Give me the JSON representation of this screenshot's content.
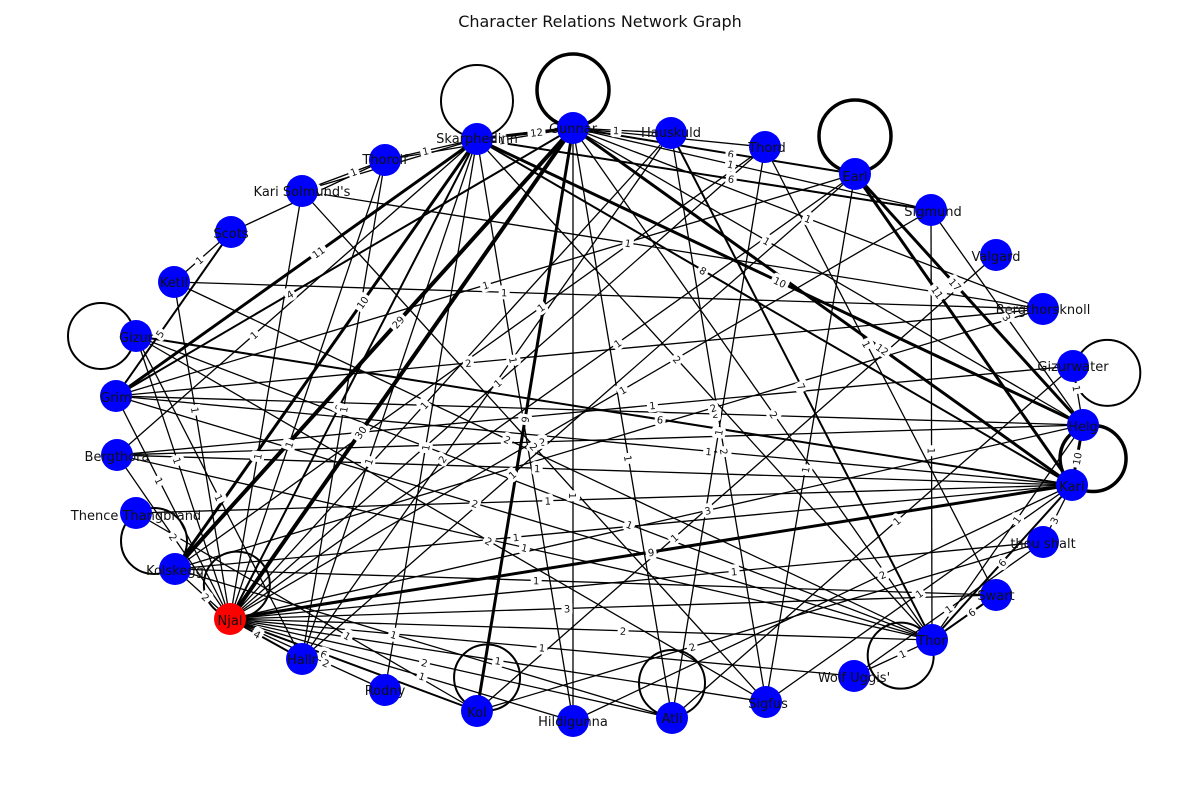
{
  "title": "Character Relations Network Graph",
  "colors": {
    "node": "#0000ff",
    "highlight": "#ff0000",
    "edge": "#000000",
    "background": "#ffffff"
  },
  "nodes": [
    {
      "id": "Gunnar"
    },
    {
      "id": "Hauskuld"
    },
    {
      "id": "Thord"
    },
    {
      "id": "Earl"
    },
    {
      "id": "Sigmund"
    },
    {
      "id": "Valgard"
    },
    {
      "id": "Bergthorsknoll"
    },
    {
      "id": "Gizurwater"
    },
    {
      "id": "Helg"
    },
    {
      "id": "Kari"
    },
    {
      "id": "thou shalt"
    },
    {
      "id": "Swart"
    },
    {
      "id": "Thor"
    },
    {
      "id": "Wolf Uggis'"
    },
    {
      "id": "Sigfus"
    },
    {
      "id": "Atli"
    },
    {
      "id": "Hildigunna"
    },
    {
      "id": "Kol"
    },
    {
      "id": "Rodny"
    },
    {
      "id": "Hallr"
    },
    {
      "id": "Njal",
      "highlight": true
    },
    {
      "id": "Kolskegg"
    },
    {
      "id": "Thence Thangbrand"
    },
    {
      "id": "Bergthora"
    },
    {
      "id": "Grim"
    },
    {
      "id": "Gizur"
    },
    {
      "id": "Ketil"
    },
    {
      "id": "Scots"
    },
    {
      "id": "Kari Solmund's"
    },
    {
      "id": "Thorolf"
    },
    {
      "id": "Skarphedinn"
    }
  ],
  "self_loops": [
    "Skarphedinn",
    "Gunnar",
    "Earl",
    "Gizur",
    "Gizurwater",
    "Helg",
    "Kolskegg",
    "Njal",
    "Kol",
    "Atli",
    "Thor"
  ],
  "edges": [
    [
      "Njal",
      "Gunnar",
      30
    ],
    [
      "Njal",
      "Skarphedinn",
      8
    ],
    [
      "Njal",
      "Kari",
      9
    ],
    [
      "Njal",
      "Helg",
      3
    ],
    [
      "Njal",
      "Grim",
      1
    ],
    [
      "Njal",
      "Kol",
      6
    ],
    [
      "Njal",
      "Atli",
      2
    ],
    [
      "Njal",
      "Sigfus",
      1
    ],
    [
      "Njal",
      "Hildigunna",
      1
    ],
    [
      "Njal",
      "Rodny",
      2
    ],
    [
      "Njal",
      "Hallr",
      4
    ],
    [
      "Njal",
      "Kolskegg",
      2
    ],
    [
      "Njal",
      "Bergthora",
      2
    ],
    [
      "Njal",
      "Thor",
      2
    ],
    [
      "Njal",
      "Earl",
      1
    ],
    [
      "Njal",
      "Thorolf",
      1
    ],
    [
      "Njal",
      "Swart",
      3
    ],
    [
      "Njal",
      "Wolf Uggis'",
      1
    ],
    [
      "Njal",
      "Gizur",
      1
    ],
    [
      "Njal",
      "Ketil",
      1
    ],
    [
      "Njal",
      "Kari Solmund's",
      1
    ],
    [
      "Njal",
      "Hauskuld",
      1
    ],
    [
      "Njal",
      "Thord",
      1
    ],
    [
      "Njal",
      "Sigmund",
      1
    ],
    [
      "Njal",
      "thou shalt",
      1
    ],
    [
      "Gunnar",
      "Skarphedinn",
      12
    ],
    [
      "Gunnar",
      "Hauskuld",
      1
    ],
    [
      "Gunnar",
      "Thord",
      3
    ],
    [
      "Gunnar",
      "Earl",
      6
    ],
    [
      "Gunnar",
      "Kari",
      12
    ],
    [
      "Gunnar",
      "Helg",
      1
    ],
    [
      "Gunnar",
      "Kolskegg",
      29
    ],
    [
      "Gunnar",
      "Kol",
      9
    ],
    [
      "Gunnar",
      "Thor",
      2
    ],
    [
      "Gunnar",
      "Grim",
      4
    ],
    [
      "Gunnar",
      "Thorolf",
      1
    ],
    [
      "Gunnar",
      "Sigmund",
      1
    ],
    [
      "Gunnar",
      "Bergthorsknoll",
      1
    ],
    [
      "Gunnar",
      "Atli",
      1
    ],
    [
      "Gunnar",
      "Hildigunna",
      1
    ],
    [
      "Skarphedinn",
      "Kari",
      8
    ],
    [
      "Skarphedinn",
      "Grim",
      11
    ],
    [
      "Skarphedinn",
      "Helg",
      10
    ],
    [
      "Skarphedinn",
      "Thorolf",
      1
    ],
    [
      "Skarphedinn",
      "Hallr",
      1
    ],
    [
      "Skarphedinn",
      "Kolskegg",
      10
    ],
    [
      "Skarphedinn",
      "Thor",
      2
    ],
    [
      "Skarphedinn",
      "Kari Solmund's",
      1
    ],
    [
      "Skarphedinn",
      "Sigmund",
      6
    ],
    [
      "Skarphedinn",
      "Bergthora",
      1
    ],
    [
      "Earl",
      "Kari",
      11
    ],
    [
      "Earl",
      "Helg",
      17
    ],
    [
      "Earl",
      "Grim",
      1
    ],
    [
      "Earl",
      "Sigfus",
      1
    ],
    [
      "Earl",
      "Hallr",
      1
    ],
    [
      "Kari",
      "Grim",
      1
    ],
    [
      "Kari",
      "Helg",
      10
    ],
    [
      "Kari",
      "Thor",
      6
    ],
    [
      "Kari",
      "Bergthora",
      1
    ],
    [
      "Kari",
      "thou shalt",
      3
    ],
    [
      "Kari",
      "Hildigunna",
      2
    ],
    [
      "Kari",
      "Gizur",
      6
    ],
    [
      "Kari",
      "Sigfus",
      1
    ],
    [
      "Kari",
      "Thence Thangbrand",
      1
    ],
    [
      "Kari",
      "Kolskegg",
      1
    ],
    [
      "Helg",
      "Grim",
      2
    ],
    [
      "Helg",
      "Thor",
      1
    ],
    [
      "Helg",
      "Sigmund",
      3
    ],
    [
      "Helg",
      "Bergthora",
      2
    ],
    [
      "Helg",
      "Gizurwater",
      1
    ],
    [
      "Thorolf",
      "Kari Solmund's",
      1
    ],
    [
      "Thorolf",
      "Scots",
      1
    ],
    [
      "Thorolf",
      "Hallr",
      1
    ],
    [
      "Scots",
      "Ketil",
      1
    ],
    [
      "Scots",
      "Grim",
      5
    ],
    [
      "Grim",
      "Bergthorsknoll",
      2
    ],
    [
      "Grim",
      "Thor",
      2
    ],
    [
      "Hauskuld",
      "Thor",
      7
    ],
    [
      "Hauskuld",
      "Sigfus",
      2
    ],
    [
      "Hauskuld",
      "Hallr",
      2
    ],
    [
      "Thord",
      "Kolskegg",
      1
    ],
    [
      "Thord",
      "Swart",
      1
    ],
    [
      "Thord",
      "Atli",
      1
    ],
    [
      "Sigmund",
      "Thor",
      1
    ],
    [
      "Valgard",
      "Kol",
      1
    ],
    [
      "Bergthorsknoll",
      "Kolskegg",
      2
    ],
    [
      "Gizurwater",
      "Atli",
      1
    ],
    [
      "Thor",
      "Bergthora",
      1
    ],
    [
      "Thor",
      "Ketil",
      2
    ],
    [
      "Thor",
      "Swart",
      6
    ],
    [
      "Thor",
      "Wolf Uggis'",
      1
    ],
    [
      "Sigfus",
      "Gizur",
      2
    ],
    [
      "Sigfus",
      "Kari Solmund's",
      2
    ],
    [
      "Atli",
      "Kolskegg",
      1
    ],
    [
      "Hildigunna",
      "Skarphedinn",
      1
    ],
    [
      "Kol",
      "Thence Thangbrand",
      1
    ],
    [
      "Rodny",
      "Skarphedinn",
      1
    ],
    [
      "Hallr",
      "Gizur",
      1
    ],
    [
      "Bergthora",
      "Gizurwater",
      1
    ],
    [
      "Gizur",
      "Thor",
      1
    ],
    [
      "Ketil",
      "Bergthorsknoll",
      1
    ],
    [
      "Kari Solmund's",
      "Bergthorsknoll",
      1
    ],
    [
      "Wolf Uggis'",
      "thou shalt",
      1
    ],
    [
      "Swart",
      "Kolskegg",
      1
    ],
    [
      "thou shalt",
      "Kol",
      2
    ]
  ]
}
